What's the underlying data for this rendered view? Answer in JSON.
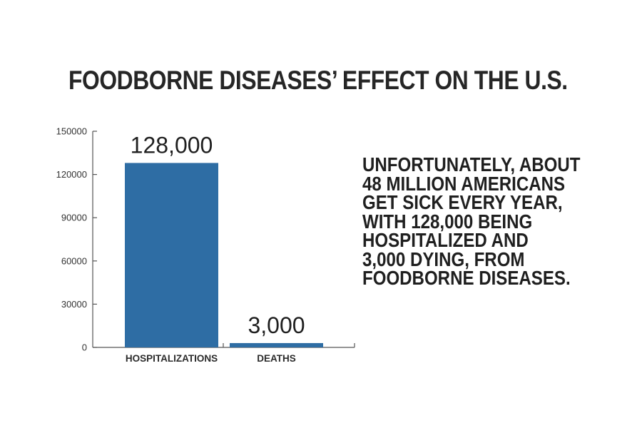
{
  "title": "FOODBORNE DISEASES’ EFFECT ON THE U.S.",
  "caption": "UNFORTUNATELY, ABOUT\n48 MILLION AMERICANS\nGET SICK EVERY YEAR,\nWITH 128,000 BEING\nHOSPITALIZED AND\n3,000 DYING, FROM\nFOODBORNE DISEASES.",
  "colors": {
    "bar": "#2e6da4",
    "axis": "#555555"
  },
  "chart_data": {
    "type": "bar",
    "title": "FOODBORNE DISEASES’ EFFECT ON THE U.S.",
    "categories": [
      "HOSPITALIZATIONS",
      "DEATHS"
    ],
    "values": [
      128000,
      3000
    ],
    "data_labels": [
      "128,000",
      "3,000"
    ],
    "xlabel": "",
    "ylabel": "",
    "ylim": [
      0,
      150000
    ],
    "yticks": [
      0,
      30000,
      60000,
      90000,
      120000,
      150000
    ],
    "ytick_labels": [
      "0",
      "30000",
      "60000",
      "90000",
      "120000",
      "150000"
    ],
    "grid": false,
    "legend": "none"
  }
}
